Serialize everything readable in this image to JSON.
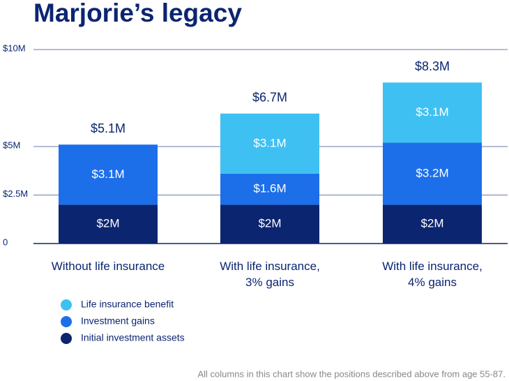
{
  "chart_data": {
    "type": "stacked_bar",
    "title": "Marjorie’s legacy",
    "categories": [
      "Without life insurance",
      "With life insurance,\n3% gains",
      "With life insurance,\n4% gains"
    ],
    "series": [
      {
        "name": "Initial investment assets",
        "color": "#0b2570",
        "values": [
          2,
          2,
          2
        ],
        "value_labels": [
          "$2M",
          "$2M",
          "$2M"
        ]
      },
      {
        "name": "Investment gains",
        "color": "#1c6fe9",
        "values": [
          3.1,
          1.6,
          3.2
        ],
        "value_labels": [
          "$3.1M",
          "$1.6M",
          "$3.2M"
        ]
      },
      {
        "name": "Life insurance benefit",
        "color": "#3fc0f2",
        "values": [
          null,
          3.1,
          3.1
        ],
        "value_labels": [
          null,
          "$3.1M",
          "$3.1M"
        ]
      }
    ],
    "totals": {
      "values": [
        5.1,
        6.7,
        8.3
      ],
      "value_labels": [
        "$5.1M",
        "$6.7M",
        "$8.3M"
      ]
    },
    "ylim": [
      0,
      10
    ],
    "yticks": [
      {
        "value": 0,
        "label": "0"
      },
      {
        "value": 2.5,
        "label": "$2.5M"
      },
      {
        "value": 5,
        "label": "$5M"
      },
      {
        "value": 10,
        "label": "$10M"
      }
    ],
    "grid": true,
    "footnote": "All columns in this chart show the positions described above from age 55-87."
  }
}
